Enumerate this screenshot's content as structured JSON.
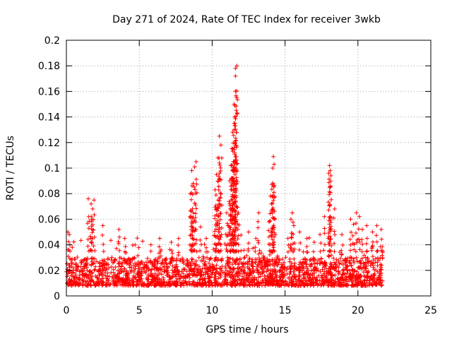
{
  "chart_data": {
    "type": "scatter",
    "title": "Day 271 of 2024, Rate Of TEC Index for receiver 3wkb",
    "xlabel": "GPS time / hours",
    "ylabel": "ROTI / TECUs",
    "xlim": [
      0,
      25
    ],
    "ylim": [
      0,
      0.2
    ],
    "x_ticks": [
      0,
      5,
      10,
      15,
      20,
      25
    ],
    "x_tick_labels": [
      "0",
      "5",
      "10",
      "15",
      "20",
      "25"
    ],
    "y_ticks": [
      0,
      0.02,
      0.04,
      0.06,
      0.08,
      0.1,
      0.12,
      0.14,
      0.16,
      0.18,
      0.2
    ],
    "y_tick_labels": [
      "0",
      "0.02",
      "0.04",
      "0.06",
      "0.08",
      "0.1",
      "0.12",
      "0.14",
      "0.16",
      "0.18",
      "0.2"
    ],
    "grid": true,
    "marker": "+",
    "series": [
      {
        "name": "ROTI",
        "color": "#ff0000",
        "data_range_x": [
          0,
          21.7
        ],
        "baseline_band": [
          0.008,
          0.03
        ],
        "points": [
          [
            0.1,
            0.05
          ],
          [
            0.2,
            0.048
          ],
          [
            0.4,
            0.038
          ],
          [
            1.5,
            0.076
          ],
          [
            1.7,
            0.072
          ],
          [
            1.8,
            0.068
          ],
          [
            1.9,
            0.075
          ],
          [
            1.7,
            0.062
          ],
          [
            2.5,
            0.055
          ],
          [
            3.6,
            0.052
          ],
          [
            4.0,
            0.045
          ],
          [
            5.8,
            0.04
          ],
          [
            6.4,
            0.045
          ],
          [
            7.2,
            0.042
          ],
          [
            7.7,
            0.045
          ],
          [
            8.5,
            0.08
          ],
          [
            8.6,
            0.098
          ],
          [
            8.7,
            0.088
          ],
          [
            8.8,
            0.101
          ],
          [
            8.9,
            0.105
          ],
          [
            8.7,
            0.065
          ],
          [
            8.6,
            0.058
          ],
          [
            9.2,
            0.054
          ],
          [
            9.6,
            0.045
          ],
          [
            10.2,
            0.083
          ],
          [
            10.3,
            0.095
          ],
          [
            10.4,
            0.108
          ],
          [
            10.5,
            0.125
          ],
          [
            10.6,
            0.118
          ],
          [
            10.5,
            0.104
          ],
          [
            10.4,
            0.075
          ],
          [
            10.3,
            0.068
          ],
          [
            11.0,
            0.065
          ],
          [
            11.1,
            0.055
          ],
          [
            11.2,
            0.09
          ],
          [
            11.3,
            0.102
          ],
          [
            11.4,
            0.115
          ],
          [
            11.4,
            0.128
          ],
          [
            11.5,
            0.135
          ],
          [
            11.5,
            0.15
          ],
          [
            11.6,
            0.16
          ],
          [
            11.6,
            0.172
          ],
          [
            11.7,
            0.18
          ],
          [
            11.6,
            0.178
          ],
          [
            11.5,
            0.13
          ],
          [
            11.4,
            0.098
          ],
          [
            11.3,
            0.083
          ],
          [
            11.2,
            0.072
          ],
          [
            11.8,
            0.065
          ],
          [
            12.5,
            0.05
          ],
          [
            13.0,
            0.045
          ],
          [
            13.2,
            0.065
          ],
          [
            13.9,
            0.058
          ],
          [
            14.0,
            0.078
          ],
          [
            14.1,
            0.087
          ],
          [
            14.15,
            0.1
          ],
          [
            14.2,
            0.109
          ],
          [
            14.25,
            0.103
          ],
          [
            14.3,
            0.06
          ],
          [
            15.2,
            0.045
          ],
          [
            15.4,
            0.06
          ],
          [
            15.5,
            0.065
          ],
          [
            15.6,
            0.055
          ],
          [
            16.0,
            0.05
          ],
          [
            16.5,
            0.045
          ],
          [
            17.0,
            0.042
          ],
          [
            17.4,
            0.048
          ],
          [
            17.7,
            0.062
          ],
          [
            18.0,
            0.096
          ],
          [
            18.05,
            0.102
          ],
          [
            18.1,
            0.098
          ],
          [
            18.15,
            0.094
          ],
          [
            18.1,
            0.062
          ],
          [
            18.4,
            0.068
          ],
          [
            18.9,
            0.048
          ],
          [
            19.5,
            0.06
          ],
          [
            19.7,
            0.056
          ],
          [
            19.9,
            0.065
          ],
          [
            20.1,
            0.062
          ],
          [
            20.3,
            0.052
          ],
          [
            20.6,
            0.055
          ],
          [
            21.0,
            0.05
          ],
          [
            21.3,
            0.055
          ],
          [
            21.6,
            0.052
          ],
          [
            21.7,
            0.035
          ]
        ]
      }
    ]
  }
}
